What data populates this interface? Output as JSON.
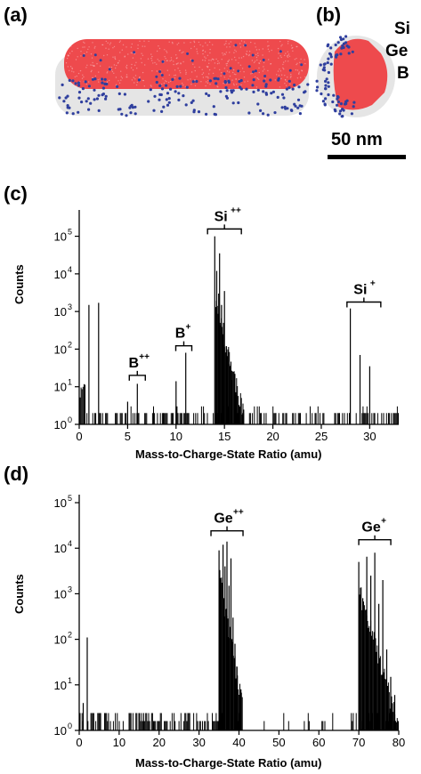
{
  "panels": {
    "a": "(a)",
    "b": "(b)",
    "c": "(c)",
    "d": "(d)"
  },
  "legend": [
    {
      "label": "Si",
      "color": "#c8c8c8"
    },
    {
      "label": "Ge",
      "color": "#e8383c"
    },
    {
      "label": "B",
      "color": "#3c4aa8"
    }
  ],
  "scale_bar": {
    "label": "50 nm"
  },
  "colors": {
    "si_atoms": "#dcdcdc",
    "ge_atoms": "#ee4a4d",
    "b_atoms": "#2f3f9e",
    "spectrum": "#000000"
  },
  "chart_data": [
    {
      "type": "line",
      "xlabel": "Mass-to-Charge-State Ratio (amu)",
      "ylabel": "Counts",
      "xlim": [
        0,
        33
      ],
      "ylim": [
        1,
        500000
      ],
      "yscale": "log",
      "xticks": [
        0,
        5,
        10,
        15,
        20,
        25,
        30
      ],
      "yticks": [
        {
          "value": 1,
          "base": "10",
          "exp": "0"
        },
        {
          "value": 10,
          "base": "10",
          "exp": "1"
        },
        {
          "value": 100,
          "base": "10",
          "exp": "2"
        },
        {
          "value": 1000,
          "base": "10",
          "exp": "3"
        },
        {
          "value": 10000,
          "base": "10",
          "exp": "4"
        },
        {
          "value": 100000,
          "base": "10",
          "exp": "5"
        }
      ],
      "grid": false,
      "peaks": [
        {
          "x": 1.0,
          "y": 1500
        },
        {
          "x": 2.0,
          "y": 1700
        },
        {
          "x": 5.0,
          "y": 4
        },
        {
          "x": 6.0,
          "y": 12
        },
        {
          "x": 10.0,
          "y": 14
        },
        {
          "x": 11.0,
          "y": 80
        },
        {
          "x": 14.0,
          "y": 100000
        },
        {
          "x": 14.2,
          "y": 12000
        },
        {
          "x": 14.4,
          "y": 3000
        },
        {
          "x": 14.5,
          "y": 35000
        },
        {
          "x": 14.7,
          "y": 1500
        },
        {
          "x": 14.9,
          "y": 500
        },
        {
          "x": 15.0,
          "y": 3500
        },
        {
          "x": 15.2,
          "y": 120
        },
        {
          "x": 15.5,
          "y": 40
        },
        {
          "x": 15.8,
          "y": 15
        },
        {
          "x": 16.2,
          "y": 6
        },
        {
          "x": 28.0,
          "y": 1200
        },
        {
          "x": 29.0,
          "y": 70
        },
        {
          "x": 30.0,
          "y": 35
        }
      ],
      "annotations": [
        {
          "label": "B",
          "sup": "++",
          "x": 6.0,
          "y": 18
        },
        {
          "label": "B",
          "sup": "+",
          "x": 10.8,
          "y": 110
        },
        {
          "label": "Si",
          "sup": "++",
          "x": 15.0,
          "y": 140000
        },
        {
          "label": "Si",
          "sup": "+",
          "x": 29.4,
          "y": 1600
        }
      ]
    },
    {
      "type": "line",
      "xlabel": "Mass-to-Charge-State Ratio (amu)",
      "ylabel": "Counts",
      "xlim": [
        0,
        80
      ],
      "ylim": [
        1,
        150000
      ],
      "yscale": "log",
      "xticks": [
        0,
        10,
        20,
        30,
        40,
        50,
        60,
        70,
        80
      ],
      "yticks": [
        {
          "value": 1,
          "base": "10",
          "exp": "0"
        },
        {
          "value": 10,
          "base": "10",
          "exp": "1"
        },
        {
          "value": 100,
          "base": "10",
          "exp": "2"
        },
        {
          "value": 1000,
          "base": "10",
          "exp": "3"
        },
        {
          "value": 10000,
          "base": "10",
          "exp": "4"
        },
        {
          "value": 100000,
          "base": "10",
          "exp": "5"
        }
      ],
      "grid": false,
      "peaks": [
        {
          "x": 2.0,
          "y": 110
        },
        {
          "x": 1.0,
          "y": 4
        },
        {
          "x": 35.0,
          "y": 9000
        },
        {
          "x": 35.5,
          "y": 2000
        },
        {
          "x": 36.0,
          "y": 12000
        },
        {
          "x": 36.5,
          "y": 4000
        },
        {
          "x": 37.0,
          "y": 14000
        },
        {
          "x": 37.5,
          "y": 1500
        },
        {
          "x": 38.0,
          "y": 6000
        },
        {
          "x": 38.5,
          "y": 300
        },
        {
          "x": 39.0,
          "y": 80
        },
        {
          "x": 39.5,
          "y": 25
        },
        {
          "x": 40.5,
          "y": 8
        },
        {
          "x": 70.0,
          "y": 5000
        },
        {
          "x": 71.0,
          "y": 800
        },
        {
          "x": 72.0,
          "y": 6500
        },
        {
          "x": 73.0,
          "y": 2500
        },
        {
          "x": 74.0,
          "y": 8000
        },
        {
          "x": 75.0,
          "y": 600
        },
        {
          "x": 76.0,
          "y": 2000
        },
        {
          "x": 77.0,
          "y": 60
        },
        {
          "x": 78.0,
          "y": 15
        },
        {
          "x": 79.0,
          "y": 6
        }
      ],
      "annotations": [
        {
          "label": "Ge",
          "sup": "++",
          "x": 37.0,
          "y": 22000
        },
        {
          "label": "Ge",
          "sup": "+",
          "x": 74.0,
          "y": 14000
        }
      ]
    }
  ]
}
